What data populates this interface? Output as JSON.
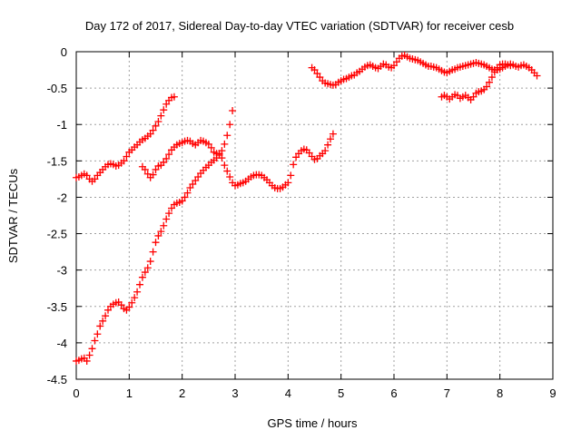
{
  "chart_data": {
    "type": "scatter",
    "title": "Day 172 of 2017, Sidereal Day-to-day VTEC variation (SDTVAR) for receiver cesb",
    "xlabel": "GPS time / hours",
    "ylabel": "SDTVAR / TECUs",
    "xlim": [
      0,
      9
    ],
    "ylim": [
      -4.5,
      0
    ],
    "x_ticks": [
      "0",
      "1",
      "2",
      "3",
      "4",
      "5",
      "6",
      "7",
      "8",
      "9"
    ],
    "y_ticks": [
      "0",
      "-0.5",
      "-1",
      "-1.5",
      "-2",
      "-2.5",
      "-3",
      "-3.5",
      "-4",
      "-4.5"
    ],
    "grid": true,
    "marker": "plus",
    "marker_color": "#ff0000",
    "series": [
      {
        "points": [
          [
            0.0,
            -1.73
          ],
          [
            0.05,
            -1.72
          ],
          [
            0.1,
            -1.7
          ],
          [
            0.15,
            -1.68
          ],
          [
            0.2,
            -1.7
          ],
          [
            0.25,
            -1.75
          ],
          [
            0.3,
            -1.78
          ],
          [
            0.35,
            -1.75
          ],
          [
            0.4,
            -1.7
          ],
          [
            0.45,
            -1.66
          ],
          [
            0.5,
            -1.62
          ],
          [
            0.55,
            -1.58
          ],
          [
            0.6,
            -1.55
          ],
          [
            0.65,
            -1.54
          ],
          [
            0.7,
            -1.55
          ],
          [
            0.75,
            -1.57
          ],
          [
            0.8,
            -1.56
          ],
          [
            0.85,
            -1.53
          ],
          [
            0.9,
            -1.5
          ],
          [
            0.95,
            -1.44
          ],
          [
            1.0,
            -1.38
          ],
          [
            1.05,
            -1.35
          ],
          [
            1.1,
            -1.31
          ],
          [
            1.15,
            -1.28
          ],
          [
            1.2,
            -1.24
          ],
          [
            1.25,
            -1.21
          ],
          [
            1.3,
            -1.19
          ],
          [
            1.35,
            -1.16
          ],
          [
            1.4,
            -1.13
          ],
          [
            1.45,
            -1.08
          ],
          [
            1.5,
            -1.02
          ],
          [
            1.55,
            -0.96
          ],
          [
            1.6,
            -0.88
          ],
          [
            1.65,
            -0.8
          ],
          [
            1.7,
            -0.72
          ],
          [
            1.75,
            -0.67
          ],
          [
            1.8,
            -0.63
          ],
          [
            1.85,
            -0.62
          ]
        ]
      },
      {
        "points": [
          [
            1.25,
            -1.58
          ],
          [
            1.3,
            -1.62
          ],
          [
            1.35,
            -1.68
          ],
          [
            1.4,
            -1.73
          ],
          [
            1.45,
            -1.69
          ],
          [
            1.5,
            -1.62
          ],
          [
            1.55,
            -1.57
          ],
          [
            1.6,
            -1.56
          ],
          [
            1.65,
            -1.52
          ],
          [
            1.7,
            -1.47
          ],
          [
            1.75,
            -1.41
          ],
          [
            1.8,
            -1.35
          ],
          [
            1.85,
            -1.31
          ],
          [
            1.9,
            -1.28
          ],
          [
            1.95,
            -1.26
          ],
          [
            2.0,
            -1.25
          ],
          [
            2.05,
            -1.23
          ],
          [
            2.1,
            -1.22
          ],
          [
            2.15,
            -1.23
          ],
          [
            2.2,
            -1.26
          ],
          [
            2.25,
            -1.28
          ],
          [
            2.3,
            -1.25
          ],
          [
            2.35,
            -1.22
          ],
          [
            2.4,
            -1.23
          ],
          [
            2.45,
            -1.25
          ],
          [
            2.5,
            -1.27
          ],
          [
            2.55,
            -1.32
          ],
          [
            2.6,
            -1.38
          ],
          [
            2.65,
            -1.4
          ],
          [
            2.7,
            -1.4
          ],
          [
            2.75,
            -1.46
          ],
          [
            2.8,
            -1.56
          ],
          [
            2.85,
            -1.64
          ],
          [
            2.9,
            -1.72
          ],
          [
            2.95,
            -1.8
          ],
          [
            3.0,
            -1.84
          ],
          [
            3.05,
            -1.83
          ],
          [
            3.1,
            -1.81
          ],
          [
            3.15,
            -1.8
          ],
          [
            3.2,
            -1.78
          ],
          [
            3.25,
            -1.75
          ],
          [
            3.3,
            -1.72
          ],
          [
            3.35,
            -1.7
          ],
          [
            3.4,
            -1.69
          ],
          [
            3.45,
            -1.69
          ],
          [
            3.5,
            -1.7
          ],
          [
            3.55,
            -1.73
          ],
          [
            3.6,
            -1.76
          ],
          [
            3.65,
            -1.8
          ],
          [
            3.7,
            -1.84
          ],
          [
            3.75,
            -1.87
          ],
          [
            3.8,
            -1.88
          ],
          [
            3.85,
            -1.88
          ],
          [
            3.9,
            -1.86
          ],
          [
            3.95,
            -1.83
          ],
          [
            4.0,
            -1.8
          ],
          [
            4.05,
            -1.7
          ],
          [
            4.1,
            -1.55
          ],
          [
            4.15,
            -1.45
          ],
          [
            4.2,
            -1.4
          ],
          [
            4.25,
            -1.36
          ],
          [
            4.3,
            -1.34
          ],
          [
            4.35,
            -1.35
          ],
          [
            4.4,
            -1.39
          ],
          [
            4.45,
            -1.44
          ],
          [
            4.5,
            -1.48
          ],
          [
            4.55,
            -1.47
          ],
          [
            4.6,
            -1.43
          ],
          [
            4.65,
            -1.4
          ],
          [
            4.7,
            -1.36
          ],
          [
            4.75,
            -1.28
          ],
          [
            4.8,
            -1.2
          ],
          [
            4.85,
            -1.13
          ]
        ]
      },
      {
        "points": [
          [
            0.0,
            -4.25
          ],
          [
            0.05,
            -4.24
          ],
          [
            0.1,
            -4.22
          ],
          [
            0.15,
            -4.21
          ],
          [
            0.2,
            -4.25
          ],
          [
            0.25,
            -4.17
          ],
          [
            0.3,
            -4.08
          ],
          [
            0.35,
            -3.97
          ],
          [
            0.4,
            -3.88
          ],
          [
            0.45,
            -3.77
          ],
          [
            0.5,
            -3.7
          ],
          [
            0.55,
            -3.63
          ],
          [
            0.6,
            -3.55
          ],
          [
            0.65,
            -3.5
          ],
          [
            0.7,
            -3.47
          ],
          [
            0.75,
            -3.45
          ],
          [
            0.8,
            -3.44
          ],
          [
            0.85,
            -3.48
          ],
          [
            0.9,
            -3.53
          ],
          [
            0.95,
            -3.55
          ],
          [
            1.0,
            -3.51
          ],
          [
            1.05,
            -3.45
          ],
          [
            1.1,
            -3.38
          ],
          [
            1.15,
            -3.3
          ],
          [
            1.2,
            -3.2
          ],
          [
            1.25,
            -3.1
          ],
          [
            1.3,
            -3.03
          ],
          [
            1.35,
            -2.97
          ],
          [
            1.4,
            -2.88
          ],
          [
            1.45,
            -2.75
          ],
          [
            1.5,
            -2.62
          ],
          [
            1.55,
            -2.53
          ],
          [
            1.6,
            -2.47
          ],
          [
            1.65,
            -2.39
          ],
          [
            1.7,
            -2.3
          ],
          [
            1.75,
            -2.22
          ],
          [
            1.8,
            -2.15
          ],
          [
            1.85,
            -2.1
          ],
          [
            1.9,
            -2.08
          ],
          [
            1.95,
            -2.07
          ],
          [
            2.0,
            -2.05
          ],
          [
            2.05,
            -2.0
          ],
          [
            2.1,
            -1.94
          ],
          [
            2.15,
            -1.87
          ],
          [
            2.2,
            -1.82
          ],
          [
            2.25,
            -1.77
          ],
          [
            2.3,
            -1.72
          ],
          [
            2.35,
            -1.67
          ],
          [
            2.4,
            -1.63
          ],
          [
            2.45,
            -1.59
          ],
          [
            2.5,
            -1.56
          ],
          [
            2.55,
            -1.52
          ],
          [
            2.6,
            -1.49
          ],
          [
            2.65,
            -1.46
          ],
          [
            2.7,
            -1.42
          ],
          [
            2.75,
            -1.36
          ],
          [
            2.8,
            -1.27
          ],
          [
            2.85,
            -1.15
          ],
          [
            2.9,
            -1.0
          ],
          [
            2.95,
            -0.81
          ]
        ]
      },
      {
        "points": [
          [
            4.45,
            -0.22
          ],
          [
            4.5,
            -0.25
          ],
          [
            4.55,
            -0.3
          ],
          [
            4.6,
            -0.35
          ],
          [
            4.65,
            -0.4
          ],
          [
            4.7,
            -0.43
          ],
          [
            4.75,
            -0.44
          ],
          [
            4.8,
            -0.45
          ],
          [
            4.85,
            -0.46
          ],
          [
            4.9,
            -0.45
          ],
          [
            4.95,
            -0.42
          ],
          [
            5.0,
            -0.4
          ],
          [
            5.05,
            -0.38
          ],
          [
            5.1,
            -0.37
          ],
          [
            5.15,
            -0.35
          ],
          [
            5.2,
            -0.33
          ],
          [
            5.25,
            -0.32
          ],
          [
            5.3,
            -0.29
          ],
          [
            5.35,
            -0.27
          ],
          [
            5.4,
            -0.24
          ],
          [
            5.45,
            -0.21
          ],
          [
            5.5,
            -0.19
          ],
          [
            5.55,
            -0.18
          ],
          [
            5.6,
            -0.2
          ],
          [
            5.65,
            -0.22
          ],
          [
            5.7,
            -0.23
          ],
          [
            5.75,
            -0.2
          ],
          [
            5.8,
            -0.17
          ],
          [
            5.85,
            -0.18
          ],
          [
            5.9,
            -0.21
          ],
          [
            5.95,
            -0.22
          ],
          [
            6.0,
            -0.19
          ],
          [
            6.05,
            -0.14
          ],
          [
            6.1,
            -0.09
          ],
          [
            6.15,
            -0.06
          ],
          [
            6.2,
            -0.05
          ],
          [
            6.25,
            -0.07
          ],
          [
            6.3,
            -0.09
          ],
          [
            6.35,
            -0.1
          ],
          [
            6.4,
            -0.11
          ],
          [
            6.45,
            -0.12
          ],
          [
            6.5,
            -0.14
          ],
          [
            6.55,
            -0.16
          ],
          [
            6.6,
            -0.18
          ],
          [
            6.65,
            -0.2
          ],
          [
            6.7,
            -0.2
          ],
          [
            6.75,
            -0.21
          ],
          [
            6.8,
            -0.22
          ],
          [
            6.85,
            -0.24
          ],
          [
            6.9,
            -0.26
          ],
          [
            6.95,
            -0.28
          ],
          [
            7.0,
            -0.29
          ],
          [
            7.05,
            -0.27
          ],
          [
            7.1,
            -0.25
          ],
          [
            7.15,
            -0.24
          ],
          [
            7.2,
            -0.22
          ],
          [
            7.25,
            -0.21
          ],
          [
            7.3,
            -0.2
          ],
          [
            7.35,
            -0.19
          ],
          [
            7.4,
            -0.18
          ],
          [
            7.45,
            -0.17
          ],
          [
            7.5,
            -0.16
          ],
          [
            7.55,
            -0.15
          ],
          [
            7.6,
            -0.16
          ],
          [
            7.65,
            -0.17
          ],
          [
            7.7,
            -0.18
          ],
          [
            7.75,
            -0.2
          ],
          [
            7.8,
            -0.22
          ],
          [
            7.85,
            -0.24
          ],
          [
            7.9,
            -0.25
          ],
          [
            7.95,
            -0.25
          ],
          [
            8.0,
            -0.24
          ],
          [
            8.05,
            -0.22
          ],
          [
            8.1,
            -0.2
          ],
          [
            8.15,
            -0.18
          ],
          [
            8.2,
            -0.17
          ],
          [
            8.25,
            -0.18
          ],
          [
            8.3,
            -0.2
          ],
          [
            8.35,
            -0.21
          ],
          [
            8.4,
            -0.19
          ],
          [
            8.45,
            -0.18
          ],
          [
            8.5,
            -0.2
          ],
          [
            8.55,
            -0.22
          ],
          [
            8.6,
            -0.25
          ],
          [
            8.65,
            -0.29
          ],
          [
            8.7,
            -0.33
          ]
        ]
      },
      {
        "points": [
          [
            6.9,
            -0.62
          ],
          [
            6.95,
            -0.6
          ],
          [
            7.0,
            -0.62
          ],
          [
            7.05,
            -0.65
          ],
          [
            7.1,
            -0.62
          ],
          [
            7.15,
            -0.59
          ],
          [
            7.2,
            -0.6
          ],
          [
            7.25,
            -0.64
          ],
          [
            7.3,
            -0.62
          ],
          [
            7.35,
            -0.6
          ],
          [
            7.4,
            -0.63
          ],
          [
            7.45,
            -0.66
          ],
          [
            7.5,
            -0.62
          ],
          [
            7.55,
            -0.57
          ],
          [
            7.6,
            -0.55
          ],
          [
            7.65,
            -0.54
          ],
          [
            7.7,
            -0.52
          ],
          [
            7.75,
            -0.48
          ],
          [
            7.8,
            -0.42
          ],
          [
            7.85,
            -0.35
          ],
          [
            7.9,
            -0.28
          ],
          [
            7.95,
            -0.22
          ],
          [
            8.0,
            -0.18
          ],
          [
            8.05,
            -0.17
          ],
          [
            8.1,
            -0.17
          ],
          [
            8.15,
            -0.18
          ],
          [
            8.2,
            -0.19
          ]
        ]
      }
    ]
  }
}
